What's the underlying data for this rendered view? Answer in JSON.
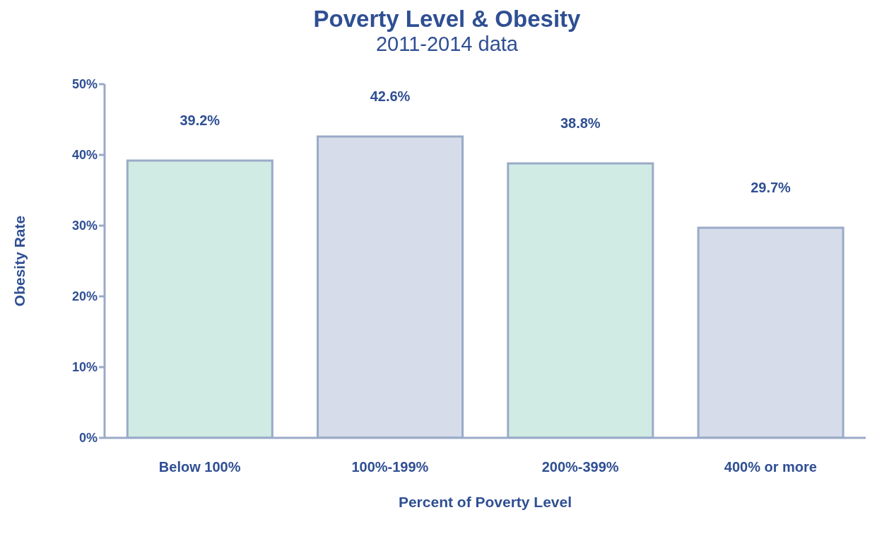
{
  "chart_data": {
    "type": "bar",
    "title": "Poverty Level & Obesity",
    "subtitle": "2011-2014 data",
    "xlabel": "Percent of Poverty Level",
    "ylabel": "Obesity Rate",
    "categories": [
      "Below 100%",
      "100%-199%",
      "200%-399%",
      "400% or more"
    ],
    "values": [
      39.2,
      42.6,
      38.8,
      29.7
    ],
    "colors": [
      "#d0ebe3",
      "#d6dce9",
      "#d0ebe3",
      "#d6dce9"
    ],
    "value_labels": [
      "39.2%",
      "42.6%",
      "38.8%",
      "29.7%"
    ],
    "ylim": [
      0,
      50
    ],
    "yticks": [
      {
        "value": 0,
        "label": "0%"
      },
      {
        "value": 10,
        "label": "10%"
      },
      {
        "value": 20,
        "label": "20%"
      },
      {
        "value": 30,
        "label": "30%"
      },
      {
        "value": 40,
        "label": "40%"
      },
      {
        "value": 50,
        "label": "50%"
      }
    ],
    "grid": false,
    "legend": false
  }
}
